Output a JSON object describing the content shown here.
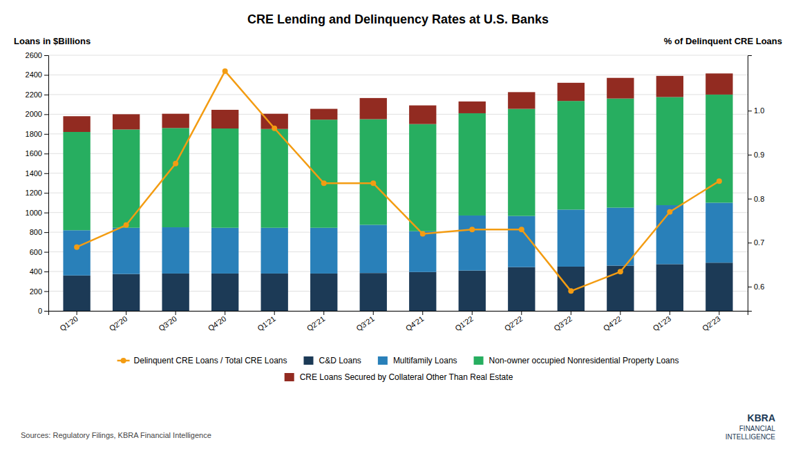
{
  "chart_data": {
    "type": "bar",
    "stacked": true,
    "title": "CRE Lending and Delinquency Rates at U.S. Banks",
    "ylabel": "Loans in $Billions",
    "y2label": "% of Delinquent CRE Loans",
    "annotations": [
      "Sources: Regulatory Filings, KBRA Financial Intelligence",
      "KBRA",
      "FINANCIAL",
      "INTELLIGENCE"
    ],
    "categories": [
      "Q1'20",
      "Q2'20",
      "Q3'20",
      "Q4'20",
      "Q1'21",
      "Q2'21",
      "Q3'21",
      "Q4'21",
      "Q1'22",
      "Q2'22",
      "Q3'22",
      "Q4'22",
      "Q1'23",
      "Q2'23"
    ],
    "series": [
      {
        "name": "Delinquent CRE Loans / Total CRE Loans",
        "type": "line",
        "axis": "y2",
        "marker": "circle",
        "color": "#f39c12",
        "values": [
          0.69,
          0.74,
          0.88,
          1.09,
          0.96,
          0.835,
          0.835,
          0.72,
          0.73,
          0.73,
          0.59,
          0.634,
          0.77,
          0.84
        ]
      },
      {
        "name": "C&D Loans",
        "type": "bar",
        "color": "#1c3a56",
        "values": [
          360,
          375,
          380,
          380,
          380,
          380,
          385,
          395,
          410,
          445,
          450,
          460,
          475,
          490
        ]
      },
      {
        "name": "Multifamily Loans",
        "type": "bar",
        "color": "#2980b9",
        "values": [
          460,
          470,
          470,
          465,
          465,
          465,
          490,
          415,
          560,
          520,
          580,
          590,
          600,
          610
        ]
      },
      {
        "name": "Non-owner occupied Nonresidential Property Loans",
        "type": "bar",
        "color": "#27ae60",
        "values": [
          1000,
          1000,
          1010,
          1010,
          1005,
          1100,
          1075,
          1090,
          1040,
          1090,
          1105,
          1110,
          1100,
          1100
        ]
      },
      {
        "name": "CRE Loans Secured by Collateral Other Than Real Estate",
        "type": "bar",
        "color": "#922b21",
        "values": [
          160,
          155,
          145,
          190,
          155,
          110,
          215,
          190,
          120,
          170,
          185,
          210,
          215,
          215
        ]
      }
    ],
    "ylim": [
      0,
      2600
    ],
    "yticks": [
      0,
      200,
      400,
      600,
      800,
      1000,
      1200,
      1400,
      1600,
      1800,
      2000,
      2200,
      2400,
      2600
    ],
    "y2lim": [
      0.545,
      1.126
    ],
    "y2ticks": [
      0.6,
      0.7,
      0.8,
      0.9,
      {
        "value": 1.0,
        "label": "1.0"
      }
    ],
    "grid": true,
    "legend": "bottom"
  }
}
